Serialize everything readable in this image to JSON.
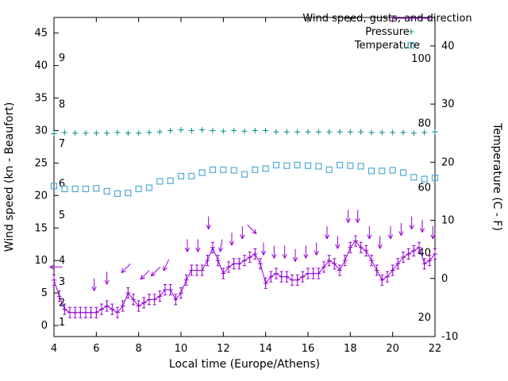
{
  "chart_data": {
    "type": "line",
    "title": "",
    "xlabel": "Local time (Europe/Athens)",
    "ylabel_left": "Wind speed (kn - Beaufort)",
    "ylabel_right": "Temperature (C - F)",
    "x_range": [
      4,
      22
    ],
    "x_ticks": [
      4,
      6,
      8,
      10,
      12,
      14,
      16,
      18,
      20,
      22
    ],
    "y_left_range": [
      -1.7,
      47.4
    ],
    "y_left_ticks": [
      0,
      5,
      10,
      15,
      20,
      25,
      30,
      35,
      40,
      45
    ],
    "y_right_range": [
      -10,
      44.9
    ],
    "y_right_ticks": [
      -10,
      0,
      10,
      20,
      30,
      40
    ],
    "grid": false,
    "legend_position": "top-right",
    "colors": {
      "wind": "#9400d3",
      "pressure": "#008b8b",
      "temperature": "#4faad2",
      "axis": "#000000",
      "background": "#ffffff"
    },
    "legend": [
      {
        "label": "Wind speed, gusts, and direction",
        "marker": "errorbar",
        "color": "#9400d3"
      },
      {
        "label": "Pressure",
        "marker": "plus",
        "color": "#008b8b"
      },
      {
        "label": "Temperature",
        "marker": "square",
        "color": "#4faad2"
      }
    ],
    "beaufort_marks": [
      {
        "label": "1",
        "kn": 0.5
      },
      {
        "label": "2",
        "kn": 3.5
      },
      {
        "label": "3",
        "kn": 6.7
      },
      {
        "label": "4",
        "kn": 10.0
      },
      {
        "label": "5",
        "kn": 17.0
      },
      {
        "label": "6",
        "kn": 21.8
      },
      {
        "label": "7",
        "kn": 28.0
      },
      {
        "label": "8",
        "kn": 34.0
      },
      {
        "label": "9",
        "kn": 41.2
      }
    ],
    "fahrenheit_marks": [
      {
        "label": "20",
        "c": -6.7
      },
      {
        "label": "40",
        "c": 4.4
      },
      {
        "label": "60",
        "c": 15.6
      },
      {
        "label": "80",
        "c": 26.7
      },
      {
        "label": "100",
        "c": 37.8
      }
    ],
    "series": {
      "wind_speed_kn": {
        "x_start": 4,
        "x_step": 0.25,
        "values": [
          7.0,
          4.5,
          2.5,
          2.0,
          2.0,
          2.0,
          2.0,
          2.0,
          2.0,
          2.5,
          3.0,
          2.5,
          2.0,
          3.0,
          5.0,
          4.0,
          3.0,
          3.5,
          4.0,
          4.0,
          4.5,
          5.5,
          5.5,
          4.0,
          5.0,
          7.0,
          8.5,
          8.5,
          8.5,
          10.0,
          12.0,
          10.0,
          8.0,
          9.0,
          9.5,
          9.5,
          10.0,
          10.5,
          11.0,
          9.5,
          6.5,
          7.5,
          8.0,
          7.5,
          7.5,
          7.0,
          7.0,
          7.5,
          8.0,
          8.0,
          8.0,
          9.0,
          10.0,
          9.5,
          8.5,
          10.0,
          12.0,
          13.0,
          12.0,
          11.5,
          10.0,
          8.5,
          7.0,
          7.5,
          8.5,
          9.5,
          10.5,
          11.0,
          11.5,
          12.0,
          9.5,
          10.0,
          11.0
        ],
        "errorbar_halfwidth_kn": 0.8
      },
      "gust_direction_arrows": {
        "format": [
          "x",
          "kn",
          "dir_deg_0_is_up"
        ],
        "points": [
          [
            4.1,
            9.0,
            270
          ],
          [
            5.9,
            6.3,
            180
          ],
          [
            6.5,
            7.3,
            180
          ],
          [
            7.4,
            8.8,
            225
          ],
          [
            8.3,
            7.8,
            225
          ],
          [
            8.8,
            8.3,
            225
          ],
          [
            9.3,
            9.3,
            205
          ],
          [
            10.3,
            12.3,
            180
          ],
          [
            10.8,
            12.3,
            180
          ],
          [
            11.3,
            15.8,
            180
          ],
          [
            11.9,
            12.3,
            190
          ],
          [
            12.4,
            13.3,
            180
          ],
          [
            12.9,
            14.3,
            180
          ],
          [
            13.35,
            14.8,
            135
          ],
          [
            13.9,
            11.8,
            180
          ],
          [
            14.4,
            11.3,
            180
          ],
          [
            14.9,
            11.3,
            180
          ],
          [
            15.4,
            10.8,
            180
          ],
          [
            15.9,
            11.3,
            180
          ],
          [
            16.4,
            11.8,
            180
          ],
          [
            16.9,
            14.3,
            180
          ],
          [
            17.4,
            12.8,
            180
          ],
          [
            17.9,
            16.8,
            180
          ],
          [
            18.35,
            16.8,
            180
          ],
          [
            18.9,
            14.3,
            180
          ],
          [
            19.4,
            12.8,
            180
          ],
          [
            19.9,
            14.3,
            180
          ],
          [
            20.4,
            14.8,
            180
          ],
          [
            20.9,
            15.8,
            180
          ],
          [
            21.4,
            15.3,
            180
          ],
          [
            21.9,
            14.3,
            180
          ]
        ]
      },
      "pressure_plotted_on_left_axis": {
        "x_start": 4,
        "x_step": 0.5,
        "values": [
          29.5,
          29.7,
          29.6,
          29.6,
          29.6,
          29.6,
          29.7,
          29.6,
          29.6,
          29.7,
          29.8,
          30.0,
          30.1,
          30.0,
          30.1,
          30.0,
          29.9,
          30.0,
          29.9,
          30.0,
          30.0,
          29.8,
          29.8,
          29.8,
          29.8,
          29.8,
          29.8,
          29.8,
          29.8,
          29.8,
          29.7,
          29.7,
          29.7,
          29.7,
          29.6,
          29.7,
          29.8
        ]
      },
      "temperature_c": {
        "x_start": 4,
        "x_step": 0.5,
        "values": [
          15.9,
          15.4,
          15.4,
          15.4,
          15.5,
          15.0,
          14.6,
          14.7,
          15.4,
          15.6,
          16.7,
          16.8,
          17.6,
          17.6,
          18.2,
          18.7,
          18.7,
          18.6,
          17.9,
          18.7,
          18.9,
          19.5,
          19.4,
          19.5,
          19.4,
          19.3,
          18.7,
          19.5,
          19.4,
          19.3,
          18.5,
          18.5,
          18.6,
          18.2,
          17.4,
          17.1,
          17.3
        ]
      }
    }
  }
}
